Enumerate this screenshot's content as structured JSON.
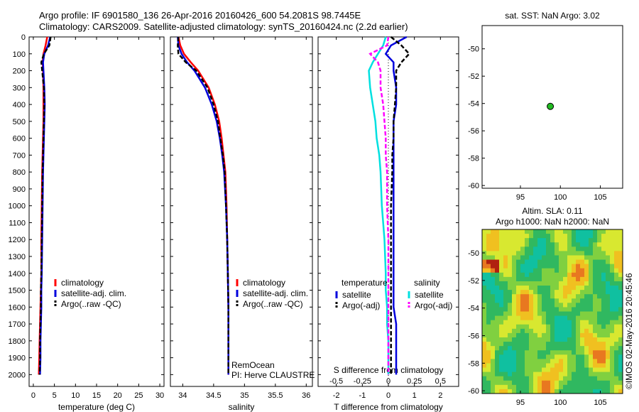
{
  "header": {
    "line1": "Argo profile: IF 6901580_136 26-Apr-2016 20160426_600 54.2081S 98.7445E",
    "line2": "Climatology: CARS2009. Satellite-adjusted climatology: synTS_20160424.nc (2.2d earlier)"
  },
  "colors": {
    "climatology": "#ff0000",
    "satellite": "#0000dd",
    "argo": "#000000",
    "sat_salinity": "#00e0e0",
    "argo_salinity": "#ff00ff",
    "float_marker": "#22bb22"
  },
  "depth_ticks": [
    "0",
    "100",
    "200",
    "300",
    "400",
    "500",
    "600",
    "700",
    "800",
    "900",
    "1000",
    "1100",
    "1200",
    "1300",
    "1400",
    "1500",
    "1600",
    "1700",
    "1800",
    "1900",
    "2000"
  ],
  "chart_data": [
    {
      "type": "line",
      "id": "temperature",
      "xlabel": "temperature (deg C)",
      "xlim": [
        -1,
        31
      ],
      "ylim": [
        2070,
        0
      ],
      "x_ticks": [
        "0",
        "5",
        "10",
        "15",
        "20",
        "25",
        "30"
      ],
      "x_tick_values": [
        0,
        5,
        10,
        15,
        20,
        25,
        30
      ],
      "legend": [
        "climatology",
        "satellite-adj. clim.",
        "Argo(..raw -QC)"
      ],
      "series": [
        {
          "name": "climatology",
          "x": [
            3.3,
            2.9,
            2.4,
            2.2,
            2.3,
            2.4,
            2.4,
            2.4,
            2.3,
            2.2,
            2.1,
            2.0,
            1.9,
            1.9,
            1.8,
            1.7,
            1.6,
            1.5,
            1.4,
            1.3
          ],
          "y": [
            0,
            50,
            100,
            150,
            200,
            300,
            400,
            500,
            600,
            700,
            800,
            1000,
            1200,
            1400,
            1500,
            1600,
            1700,
            1800,
            1900,
            2000
          ]
        },
        {
          "name": "satellite-adj. clim.",
          "x": [
            4.0,
            3.5,
            2.6,
            2.3,
            2.4,
            2.6,
            2.7,
            2.6,
            2.5,
            2.4,
            2.3,
            2.2,
            2.1,
            2.0,
            1.9,
            1.9,
            1.8,
            1.7,
            1.7,
            1.6
          ],
          "y": [
            0,
            50,
            100,
            150,
            200,
            300,
            400,
            500,
            600,
            700,
            800,
            1000,
            1200,
            1400,
            1500,
            1600,
            1700,
            1800,
            1900,
            2000
          ]
        },
        {
          "name": "Argo(..raw -QC)",
          "x": [
            4.1,
            3.8,
            2.5,
            1.9,
            2.1,
            2.5,
            2.6,
            2.5,
            2.4,
            2.3,
            2.2,
            2.1,
            2.0,
            1.9,
            1.8,
            1.8,
            1.7,
            1.6,
            1.6,
            1.5
          ],
          "y": [
            0,
            50,
            100,
            150,
            200,
            300,
            400,
            500,
            600,
            700,
            800,
            1000,
            1200,
            1400,
            1500,
            1600,
            1700,
            1800,
            1900,
            2000
          ]
        }
      ]
    },
    {
      "type": "line",
      "id": "salinity",
      "xlabel": "salinity",
      "xlim": [
        33.8,
        36.1
      ],
      "ylim": [
        2070,
        0
      ],
      "x_ticks": [
        "34",
        "34.5",
        "35",
        "35.5",
        "36"
      ],
      "x_tick_values": [
        34,
        34.5,
        35,
        35.5,
        36
      ],
      "legend": [
        "climatology",
        "satellite-adj. clim.",
        "Argo(..raw -QC)"
      ],
      "annotations": [
        "RemOcean",
        "PI: Herve CLAUSTRE"
      ],
      "series": [
        {
          "name": "climatology",
          "x": [
            33.93,
            33.96,
            34.02,
            34.13,
            34.25,
            34.42,
            34.52,
            34.59,
            34.63,
            34.66,
            34.69,
            34.71,
            34.72,
            34.73,
            34.735,
            34.74,
            34.74,
            34.74,
            34.74,
            34.74
          ],
          "y": [
            0,
            50,
            100,
            150,
            200,
            300,
            400,
            500,
            600,
            700,
            800,
            1000,
            1200,
            1400,
            1500,
            1600,
            1700,
            1800,
            1900,
            2000
          ]
        },
        {
          "name": "satellite-adj. clim.",
          "x": [
            33.92,
            33.93,
            33.98,
            34.07,
            34.19,
            34.36,
            34.47,
            34.55,
            34.6,
            34.64,
            34.67,
            34.7,
            34.72,
            34.73,
            34.735,
            34.74,
            34.74,
            34.74,
            34.74,
            34.74
          ],
          "y": [
            0,
            50,
            100,
            150,
            200,
            300,
            400,
            500,
            600,
            700,
            800,
            1000,
            1200,
            1400,
            1500,
            1600,
            1700,
            1800,
            1900,
            2000
          ]
        },
        {
          "name": "Argo(..raw -QC)",
          "x": [
            33.93,
            33.92,
            33.93,
            34.05,
            34.22,
            34.4,
            34.5,
            34.57,
            34.61,
            34.65,
            34.68,
            34.7,
            34.72,
            34.73,
            34.735,
            34.74,
            34.74,
            34.74,
            34.74,
            34.74
          ],
          "y": [
            0,
            50,
            100,
            150,
            200,
            300,
            400,
            500,
            600,
            700,
            800,
            1000,
            1200,
            1400,
            1500,
            1600,
            1700,
            1800,
            1900,
            2000
          ]
        }
      ]
    },
    {
      "type": "line",
      "id": "difference",
      "xlabel": "T difference from climatology",
      "top_label": "S difference from climatology",
      "xlim": [
        -2.7,
        2.7
      ],
      "ylim": [
        2070,
        0
      ],
      "x_ticks": [
        "-2",
        "-1",
        "0",
        "1",
        "2"
      ],
      "x_tick_values": [
        -2,
        -1,
        0,
        1,
        2
      ],
      "s_ticks": [
        "-0.5",
        "-0.25",
        "0",
        "0.25",
        "0.5"
      ],
      "s_tick_values": [
        -0.5,
        -0.25,
        0,
        0.25,
        0.5
      ],
      "legend_temperature": "temperature",
      "legend_salinity": "salinity",
      "legend_items": [
        "satellite",
        "Argo(-adj)",
        "satellite",
        "Argo(-adj)"
      ],
      "series": [
        {
          "name": "satellite",
          "x": [
            0.7,
            0.1,
            -0.1,
            0.2,
            0.2,
            0.3,
            0.3,
            0.2,
            0.2,
            0.2,
            0.2,
            0.2,
            0.2,
            0.2,
            0.2,
            0.2,
            0.3,
            0.3,
            0.3,
            0.3
          ],
          "y": [
            0,
            50,
            100,
            150,
            200,
            300,
            400,
            500,
            600,
            700,
            800,
            1000,
            1200,
            1400,
            1500,
            1600,
            1700,
            1800,
            1900,
            2000
          ]
        },
        {
          "name": "Argo(-adj)",
          "x": [
            0.1,
            0.5,
            0.8,
            0.5,
            0.3,
            0.3,
            0.25,
            0.2,
            0.2,
            0.15,
            0.15,
            0.1,
            0.1,
            0.1,
            0.1,
            0.1,
            0.1,
            0.1,
            0.1,
            0.1
          ],
          "y": [
            0,
            50,
            100,
            150,
            200,
            300,
            400,
            500,
            600,
            700,
            800,
            1000,
            1200,
            1400,
            1500,
            1600,
            1700,
            1800,
            1900,
            2000
          ]
        },
        {
          "name": "satellite",
          "x": [
            -0.1,
            -0.2,
            -0.4,
            -0.6,
            -0.75,
            -0.7,
            -0.6,
            -0.5,
            -0.45,
            -0.35,
            -0.3,
            -0.25,
            -0.15,
            -0.1,
            -0.1,
            -0.05,
            -0.05,
            0,
            0,
            0
          ],
          "y": [
            0,
            50,
            100,
            150,
            200,
            300,
            400,
            500,
            600,
            700,
            800,
            1000,
            1200,
            1400,
            1500,
            1600,
            1700,
            1800,
            1900,
            2000
          ]
        },
        {
          "name": "Argo(-adj)",
          "x": [
            0,
            -0.05,
            -0.7,
            -0.4,
            -0.3,
            -0.3,
            -0.2,
            -0.15,
            -0.1,
            -0.1,
            -0.05,
            -0.05,
            0,
            0,
            0,
            0,
            0,
            0,
            0,
            0
          ],
          "y": [
            0,
            50,
            100,
            150,
            200,
            300,
            400,
            500,
            600,
            700,
            800,
            1000,
            1200,
            1400,
            1500,
            1600,
            1700,
            1800,
            1900,
            2000
          ]
        }
      ]
    },
    {
      "type": "scatter",
      "id": "sst_map",
      "title": "sat. SST: NaN Argo: 3.02",
      "xlim": [
        90.2,
        107.8
      ],
      "ylim": [
        -60.2,
        -48.3
      ],
      "x_ticks": [
        "95",
        "100",
        "105"
      ],
      "x_tick_values": [
        95,
        100,
        105
      ],
      "y_ticks": [
        "-50",
        "-52",
        "-54",
        "-56",
        "-58",
        "-60"
      ],
      "y_tick_values": [
        -50,
        -52,
        -54,
        -56,
        -58,
        -60
      ],
      "points": [
        {
          "x": 98.74,
          "y": -54.21
        }
      ]
    },
    {
      "type": "heatmap",
      "id": "sla_map",
      "title_line1": "Altim. SLA: 0.11",
      "title_line2": "Argo h1000: NaN h2000: NaN",
      "xlim": [
        90.2,
        107.8
      ],
      "ylim": [
        -60.2,
        -48.3
      ],
      "x_ticks": [
        "95",
        "100",
        "105"
      ],
      "x_tick_values": [
        95,
        100,
        105
      ],
      "y_ticks": [
        "-50",
        "-52",
        "-54",
        "-56",
        "-58",
        "-60"
      ],
      "y_tick_values": [
        -50,
        -52,
        -54,
        -56,
        -58,
        -60
      ],
      "stamp": "©IMOS 02-May-2016 20:45:46"
    }
  ]
}
